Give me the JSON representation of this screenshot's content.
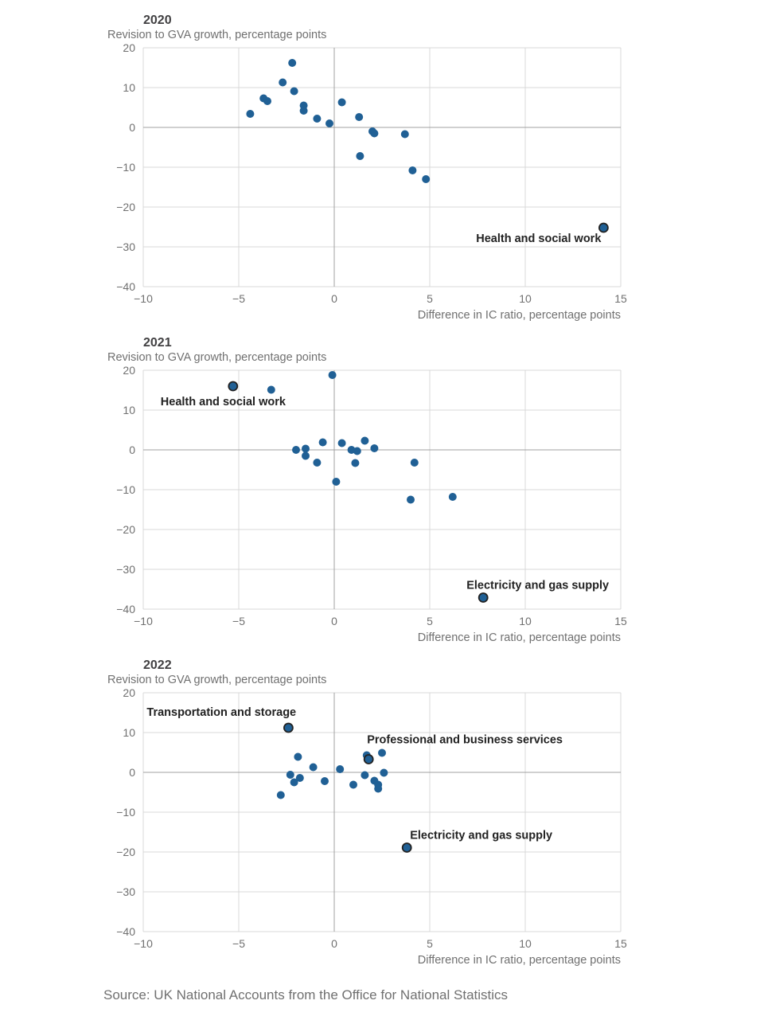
{
  "source": "Source: UK National Accounts from the Office for National Statistics",
  "colors": {
    "point": "#206095",
    "highlight_stroke": "#222222",
    "grid": "#d9d9d9",
    "zero_line": "#a0a0a0",
    "axis_text": "#707070",
    "title_text": "#414042",
    "label_text": "#222222"
  },
  "chart_data": [
    {
      "type": "scatter",
      "title": "2020",
      "ylabel": "Revision to GVA growth, percentage points",
      "xlabel": "Difference in IC ratio, percentage points",
      "xlim": [
        -10,
        15
      ],
      "ylim": [
        -40,
        20
      ],
      "xticks": [
        "−10",
        "−5",
        "0",
        "5",
        "10",
        "15"
      ],
      "yticks": [
        "20",
        "10",
        "0",
        "−10",
        "−20",
        "−30",
        "−40"
      ],
      "grid": true,
      "points": [
        {
          "x": -4.4,
          "y": 3.4
        },
        {
          "x": -3.7,
          "y": 7.3
        },
        {
          "x": -3.5,
          "y": 6.6
        },
        {
          "x": -2.7,
          "y": 11.3
        },
        {
          "x": -2.2,
          "y": 16.2
        },
        {
          "x": -2.1,
          "y": 9.1
        },
        {
          "x": -1.6,
          "y": 5.5
        },
        {
          "x": -1.6,
          "y": 4.2
        },
        {
          "x": -0.9,
          "y": 2.2
        },
        {
          "x": -0.25,
          "y": 1.0
        },
        {
          "x": 0.4,
          "y": 6.3
        },
        {
          "x": 1.3,
          "y": 2.6
        },
        {
          "x": 2.0,
          "y": -1.0
        },
        {
          "x": 2.1,
          "y": -1.5
        },
        {
          "x": 3.7,
          "y": -1.7
        },
        {
          "x": 1.35,
          "y": -7.2
        },
        {
          "x": 4.1,
          "y": -10.8
        },
        {
          "x": 4.8,
          "y": -13.0
        }
      ],
      "highlights": [
        {
          "x": 14.1,
          "y": -25.2,
          "label": "Health and social work",
          "anchor": "end",
          "dx": -3,
          "dy": 18
        }
      ]
    },
    {
      "type": "scatter",
      "title": "2021",
      "ylabel": "Revision to GVA growth, percentage points",
      "xlabel": "Difference in IC ratio, percentage points",
      "xlim": [
        -10,
        15
      ],
      "ylim": [
        -40,
        20
      ],
      "xticks": [
        "−10",
        "−5",
        "0",
        "5",
        "10",
        "15"
      ],
      "yticks": [
        "20",
        "10",
        "0",
        "−10",
        "−20",
        "−30",
        "−40"
      ],
      "grid": true,
      "points": [
        {
          "x": -3.3,
          "y": 15.1
        },
        {
          "x": -0.1,
          "y": 18.8
        },
        {
          "x": -2.0,
          "y": 0.0
        },
        {
          "x": -1.5,
          "y": 0.3
        },
        {
          "x": -1.5,
          "y": -1.5
        },
        {
          "x": -0.9,
          "y": -3.2
        },
        {
          "x": -0.6,
          "y": 1.9
        },
        {
          "x": 0.1,
          "y": -8.0
        },
        {
          "x": 0.4,
          "y": 1.7
        },
        {
          "x": 0.9,
          "y": 0.0
        },
        {
          "x": 1.1,
          "y": -3.3
        },
        {
          "x": 1.2,
          "y": -0.3
        },
        {
          "x": 1.6,
          "y": 2.3
        },
        {
          "x": 2.1,
          "y": 0.4
        },
        {
          "x": 4.2,
          "y": -3.2
        },
        {
          "x": 4.0,
          "y": -12.5
        },
        {
          "x": 6.2,
          "y": -11.8
        }
      ],
      "highlights": [
        {
          "x": -5.3,
          "y": 16.0,
          "label": "Health and social work",
          "anchor": "start",
          "dx": -91,
          "dy": 24
        },
        {
          "x": 7.8,
          "y": -37.1,
          "label": "Electricity and gas supply",
          "anchor": "start",
          "dx": -21,
          "dy": -11
        }
      ]
    },
    {
      "type": "scatter",
      "title": "2022",
      "ylabel": "Revision to GVA growth, percentage points",
      "xlabel": "Difference in IC ratio, percentage points",
      "xlim": [
        -10,
        15
      ],
      "ylim": [
        -40,
        20
      ],
      "xticks": [
        "−10",
        "−5",
        "0",
        "5",
        "10",
        "15"
      ],
      "yticks": [
        "20",
        "10",
        "0",
        "−10",
        "−20",
        "−30",
        "−40"
      ],
      "grid": true,
      "points": [
        {
          "x": -2.8,
          "y": -5.7
        },
        {
          "x": -2.3,
          "y": -0.6
        },
        {
          "x": -2.1,
          "y": -2.5
        },
        {
          "x": -1.9,
          "y": 3.9
        },
        {
          "x": -1.8,
          "y": -1.4
        },
        {
          "x": -1.1,
          "y": 1.3
        },
        {
          "x": -0.5,
          "y": -2.2
        },
        {
          "x": 0.3,
          "y": 0.8
        },
        {
          "x": 1.0,
          "y": -3.1
        },
        {
          "x": 1.6,
          "y": -0.7
        },
        {
          "x": 1.7,
          "y": 4.3
        },
        {
          "x": 2.1,
          "y": -2.1
        },
        {
          "x": 2.3,
          "y": -4.1
        },
        {
          "x": 2.3,
          "y": -3.1
        },
        {
          "x": 2.5,
          "y": 4.9
        },
        {
          "x": 2.6,
          "y": -0.1
        }
      ],
      "highlights": [
        {
          "x": -2.4,
          "y": 11.2,
          "label": "Transportation and storage",
          "anchor": "start",
          "dx": -178,
          "dy": -15
        },
        {
          "x": 1.8,
          "y": 3.3,
          "label": "Professional and business services",
          "anchor": "start",
          "dx": -2,
          "dy": -20
        },
        {
          "x": 3.8,
          "y": -18.9,
          "label": "Electricity and gas supply",
          "anchor": "start",
          "dx": 4,
          "dy": -11
        }
      ]
    }
  ]
}
